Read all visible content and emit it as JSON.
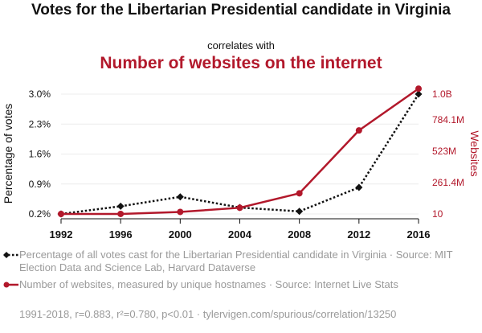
{
  "header": {
    "title": "Votes for the Libertarian Presidential candidate in Virginia",
    "correlates": "correlates with",
    "subtitle": "Number of websites on the internet"
  },
  "chart_data": {
    "type": "line",
    "x": [
      1992,
      1996,
      2000,
      2004,
      2008,
      2012,
      2016
    ],
    "xticks": [
      "1992",
      "1996",
      "2000",
      "2004",
      "2008",
      "2012",
      "2016"
    ],
    "left_axis": {
      "label": "Percentage of votes",
      "range": [
        0.2,
        3.0
      ],
      "ticks": [
        0.2,
        0.9,
        1.6,
        2.3,
        3.0
      ],
      "tick_labels": [
        "0.2%",
        "0.9%",
        "1.6%",
        "2.3%",
        "3.0%"
      ]
    },
    "right_axis": {
      "label": "Websites",
      "range": [
        10,
        1000000000
      ],
      "ticks": [
        10,
        261400000,
        523000000,
        784100000,
        1000000000
      ],
      "tick_labels": [
        "10",
        "261.4M",
        "523M",
        "784.1M",
        "1.0B"
      ],
      "color": "#b2182b"
    },
    "series": [
      {
        "name": "Percentage of votes",
        "axis": "left",
        "color": "#111111",
        "style": "dotted",
        "marker": "diamond",
        "values": [
          0.2,
          0.38,
          0.6,
          0.35,
          0.26,
          0.82,
          3.0
        ]
      },
      {
        "name": "Websites",
        "axis": "right",
        "color": "#b2182b",
        "style": "solid",
        "marker": "circle",
        "values": [
          10,
          257601,
          17087182,
          51611646,
          172338726,
          697089489,
          1045534808
        ]
      }
    ],
    "legend": [
      {
        "text": "Percentage of all votes cast for the Libertarian Presidential candidate in Virginia · Source: MIT Election Data and Science Lab, Harvard Dataverse"
      },
      {
        "text": "Number of websites, measured by unique hostnames · Source: Internet Live Stats"
      }
    ],
    "footer": "1991-2018, r=0.883, r²=0.780, p<0.01 · tylervigen.com/spurious/correlation/13250"
  }
}
